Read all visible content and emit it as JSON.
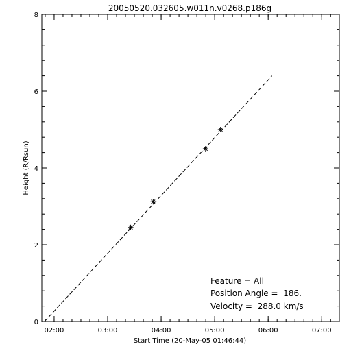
{
  "chart_data": {
    "type": "scatter",
    "title": "20050520.032605.w011n.v0268.p186g",
    "xlabel": "Start Time (20-May-05 01:46:44)",
    "ylabel": "Height (R/Rsun)",
    "x_unit": "hours",
    "xlim": [
      1.77,
      7.33
    ],
    "ylim": [
      0,
      8
    ],
    "x_ticks": [
      {
        "value": 2,
        "label": "02:00"
      },
      {
        "value": 3,
        "label": "03:00"
      },
      {
        "value": 4,
        "label": "04:00"
      },
      {
        "value": 5,
        "label": "05:00"
      },
      {
        "value": 6,
        "label": "06:00"
      },
      {
        "value": 7,
        "label": "07:00"
      }
    ],
    "y_ticks": [
      {
        "value": 0,
        "label": "0"
      },
      {
        "value": 2,
        "label": "2"
      },
      {
        "value": 4,
        "label": "4"
      },
      {
        "value": 6,
        "label": "6"
      },
      {
        "value": 8,
        "label": "8"
      }
    ],
    "points": [
      {
        "x": 3.43,
        "y": 2.45
      },
      {
        "x": 3.85,
        "y": 3.12
      },
      {
        "x": 4.83,
        "y": 4.5
      },
      {
        "x": 5.11,
        "y": 5.0
      }
    ],
    "fit_line": {
      "x": [
        1.82,
        6.07
      ],
      "y": [
        0.0,
        6.4
      ]
    },
    "grid": false,
    "annotations": [
      "Feature = All",
      "Position Angle =  186.",
      "Velocity =  288.0 km/s"
    ]
  }
}
